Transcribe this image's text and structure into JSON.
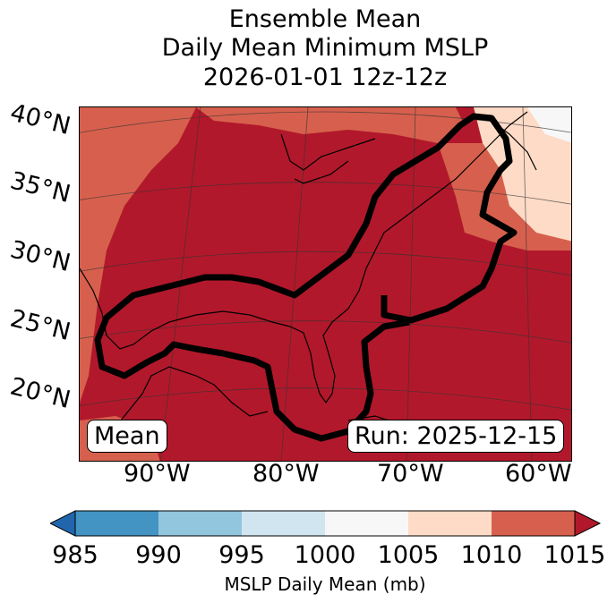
{
  "title": {
    "line1": "Ensemble Mean",
    "line2": "Daily Mean Minimum MSLP",
    "line3": "2026-01-01 12z-12z"
  },
  "lat_labels": [
    "40°N",
    "35°N",
    "30°N",
    "25°N",
    "20°N"
  ],
  "lon_labels": [
    "90°W",
    "80°W",
    "70°W",
    "60°W"
  ],
  "mean_label": "Mean",
  "run_label": "Run: 2025-12-15",
  "colorbar": {
    "ticks": [
      "985",
      "990",
      "995",
      "1000",
      "1005",
      "1010",
      "1015"
    ],
    "colors": [
      "#4393c3",
      "#92c5de",
      "#d1e5f0",
      "#f7f7f7",
      "#fddbc7",
      "#d6604d"
    ],
    "under_color": "#2166ac",
    "over_color": "#b2182b",
    "label": "MSLP Daily Mean (mb)"
  }
}
